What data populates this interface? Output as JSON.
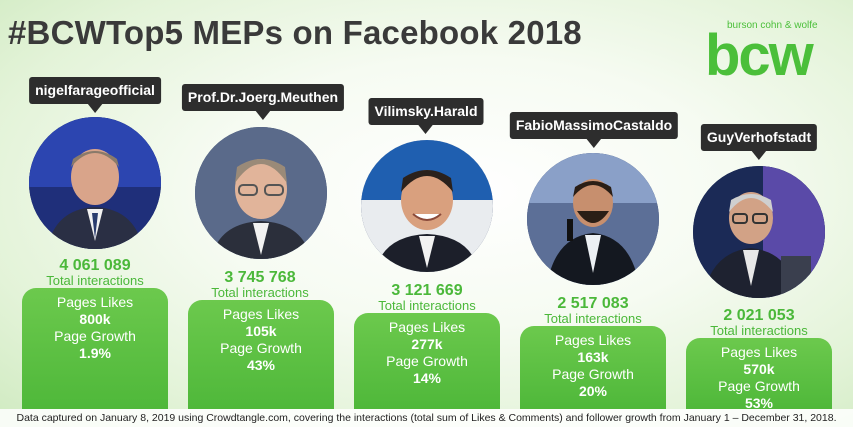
{
  "title": "#BCWTop5 MEPs on Facebook 2018",
  "logo": {
    "small": "burson cohn & wolfe",
    "big": "bcw"
  },
  "labels": {
    "total_interactions": "Total interactions",
    "pages_likes": "Pages Likes",
    "page_growth": "Page Growth"
  },
  "meps": [
    {
      "name": "nigelfarageofficial",
      "interactions": "4 061 089",
      "likes": "800k",
      "growth": "1.9%"
    },
    {
      "name": "Prof.Dr.Joerg.Meuthen",
      "interactions": "3 745 768",
      "likes": "105k",
      "growth": "43%"
    },
    {
      "name": "Vilimsky.Harald",
      "interactions": "3 121 669",
      "likes": "277k",
      "growth": "14%"
    },
    {
      "name": "FabioMassimoCastaldo",
      "interactions": "2 517 083",
      "likes": "163k",
      "growth": "20%"
    },
    {
      "name": "GuyVerhofstadt",
      "interactions": "2 021 053",
      "likes": "570k",
      "growth": "53%"
    }
  ],
  "colors": {
    "accent": "#4bb83a",
    "bubble": "#2d2d2d"
  },
  "footer": "Data captured on January 8, 2019 using Crowdtangle.com, covering the interactions (total sum of Likes & Comments) and follower growth from January 1 – December 31, 2018."
}
